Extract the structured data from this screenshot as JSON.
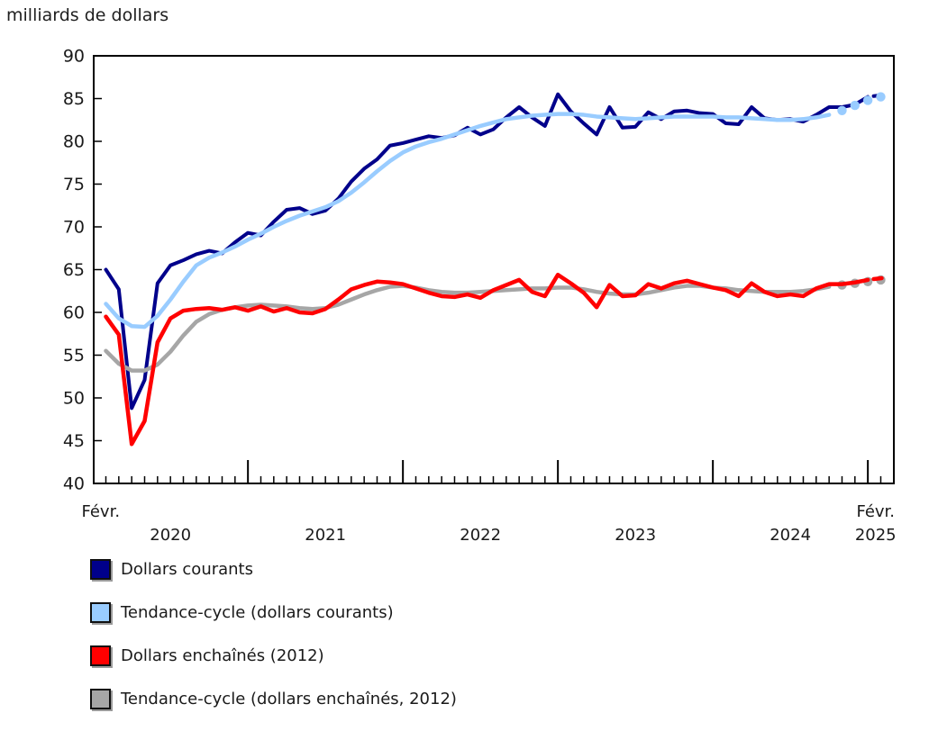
{
  "title": "milliards de dollars",
  "chart_data": {
    "type": "line",
    "title": "milliards de dollars",
    "x_start": "2020-02",
    "x_end": "2025-02",
    "frequency": "monthly",
    "n_points": 61,
    "y_axis": {
      "min": 40,
      "max": 90,
      "tick_step": 5
    },
    "x_axis": {
      "top_labels": [
        {
          "label": "Févr.",
          "i": -0.4
        },
        {
          "label": "Févr.",
          "i": 59.6
        }
      ],
      "year_labels": [
        {
          "label": "2020",
          "i": 5
        },
        {
          "label": "2021",
          "i": 17
        },
        {
          "label": "2022",
          "i": 29
        },
        {
          "label": "2023",
          "i": 41
        },
        {
          "label": "2024",
          "i": 53
        },
        {
          "label": "2025",
          "i": 59.6
        }
      ]
    },
    "series": [
      {
        "name": "Dollars courants",
        "slug": "dollars-courants",
        "color": "#00008b",
        "style": "solid-with-end-dash",
        "trend_tail_dots": false,
        "values": [
          65.0,
          62.7,
          48.8,
          52.1,
          63.4,
          65.5,
          66.1,
          66.8,
          67.2,
          66.9,
          68.2,
          69.3,
          69.0,
          70.6,
          72.0,
          72.2,
          71.5,
          71.9,
          73.3,
          75.3,
          76.8,
          77.9,
          79.5,
          79.8,
          80.2,
          80.6,
          80.4,
          80.7,
          81.6,
          80.8,
          81.4,
          82.8,
          84.0,
          82.8,
          81.8,
          85.5,
          83.5,
          82.1,
          80.8,
          84.0,
          81.6,
          81.7,
          83.4,
          82.6,
          83.5,
          83.6,
          83.3,
          83.2,
          82.1,
          82.0,
          84.0,
          82.7,
          82.5,
          82.6,
          82.3,
          83.1,
          84.0,
          84.0,
          84.3,
          85.2,
          85.4
        ]
      },
      {
        "name": "Tendance-cycle (dollars courants)",
        "slug": "tendance-cycle-courants",
        "color": "#99ccff",
        "style": "trend-dotted-tail",
        "trend_tail_dots": true,
        "values": [
          61.0,
          59.3,
          58.4,
          58.3,
          59.6,
          61.5,
          63.6,
          65.5,
          66.4,
          67.0,
          67.7,
          68.5,
          69.2,
          70.0,
          70.7,
          71.3,
          71.8,
          72.3,
          73.0,
          74.0,
          75.2,
          76.5,
          77.7,
          78.7,
          79.4,
          79.9,
          80.3,
          80.8,
          81.3,
          81.8,
          82.2,
          82.6,
          82.8,
          83.0,
          83.1,
          83.2,
          83.2,
          83.1,
          82.9,
          82.8,
          82.7,
          82.6,
          82.7,
          82.8,
          82.9,
          82.9,
          82.9,
          82.9,
          82.8,
          82.8,
          82.7,
          82.6,
          82.5,
          82.5,
          82.6,
          82.8,
          83.1,
          83.6,
          84.2,
          84.8,
          85.2
        ]
      },
      {
        "name": "Dollars enchaînés (2012)",
        "slug": "dollars-enchaines",
        "color": "#ff0000",
        "style": "solid-with-end-dash",
        "trend_tail_dots": false,
        "values": [
          59.5,
          57.4,
          44.6,
          47.3,
          56.5,
          59.3,
          60.2,
          60.4,
          60.5,
          60.3,
          60.6,
          60.2,
          60.7,
          60.1,
          60.5,
          60.0,
          59.9,
          60.4,
          61.5,
          62.7,
          63.2,
          63.6,
          63.5,
          63.3,
          62.8,
          62.3,
          61.9,
          61.8,
          62.1,
          61.7,
          62.6,
          63.2,
          63.8,
          62.4,
          61.9,
          64.4,
          63.4,
          62.3,
          60.6,
          63.2,
          61.9,
          62.0,
          63.3,
          62.8,
          63.4,
          63.7,
          63.3,
          62.9,
          62.6,
          61.9,
          63.4,
          62.4,
          61.9,
          62.1,
          61.9,
          62.8,
          63.3,
          63.3,
          63.5,
          63.8,
          64.0
        ]
      },
      {
        "name": "Tendance-cycle (dollars enchaînés, 2012)",
        "slug": "tendance-cycle-enchaines",
        "color": "#a6a6a6",
        "style": "trend-dotted-tail",
        "trend_tail_dots": true,
        "values": [
          55.5,
          54.0,
          53.2,
          53.2,
          53.9,
          55.4,
          57.3,
          58.9,
          59.8,
          60.3,
          60.6,
          60.8,
          60.9,
          60.8,
          60.7,
          60.5,
          60.4,
          60.5,
          60.9,
          61.5,
          62.1,
          62.6,
          63.0,
          63.1,
          62.9,
          62.6,
          62.4,
          62.3,
          62.3,
          62.4,
          62.5,
          62.6,
          62.7,
          62.8,
          62.8,
          62.9,
          62.9,
          62.7,
          62.4,
          62.2,
          62.1,
          62.1,
          62.3,
          62.6,
          62.9,
          63.1,
          63.1,
          62.9,
          62.8,
          62.6,
          62.5,
          62.4,
          62.4,
          62.4,
          62.5,
          62.7,
          63.0,
          63.2,
          63.4,
          63.6,
          63.8
        ]
      }
    ]
  },
  "legend": {
    "items": [
      {
        "label": "Dollars courants",
        "color": "#00008b"
      },
      {
        "label": "Tendance-cycle (dollars courants)",
        "color": "#99ccff"
      },
      {
        "label": "Dollars enchaînés (2012)",
        "color": "#ff0000"
      },
      {
        "label": "Tendance-cycle (dollars enchaînés, 2012)",
        "color": "#a6a6a6"
      }
    ]
  }
}
